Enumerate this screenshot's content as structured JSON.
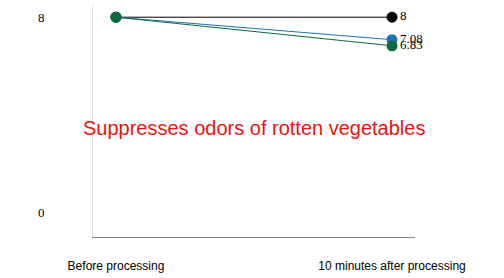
{
  "chart_data": {
    "type": "line",
    "categories": [
      "Before processing",
      "10 minutes after processing"
    ],
    "series": [
      {
        "color": "#000000",
        "values": [
          8,
          8
        ],
        "value_labels": [
          null,
          "8"
        ]
      },
      {
        "color": "#1a73bb",
        "values": [
          8,
          7.08
        ],
        "value_labels": [
          null,
          "7.08"
        ]
      },
      {
        "color": "#0b6a3c",
        "values": [
          8,
          6.83
        ],
        "value_labels": [
          null,
          "6.83"
        ]
      }
    ],
    "annotations": [
      {
        "text": "Suppresses odors of rotten vegetables",
        "color": "#ee1111"
      }
    ],
    "ylim": [
      -1,
      8.5
    ],
    "yticks": [
      0,
      8
    ],
    "grid": false,
    "marker": "circle"
  }
}
